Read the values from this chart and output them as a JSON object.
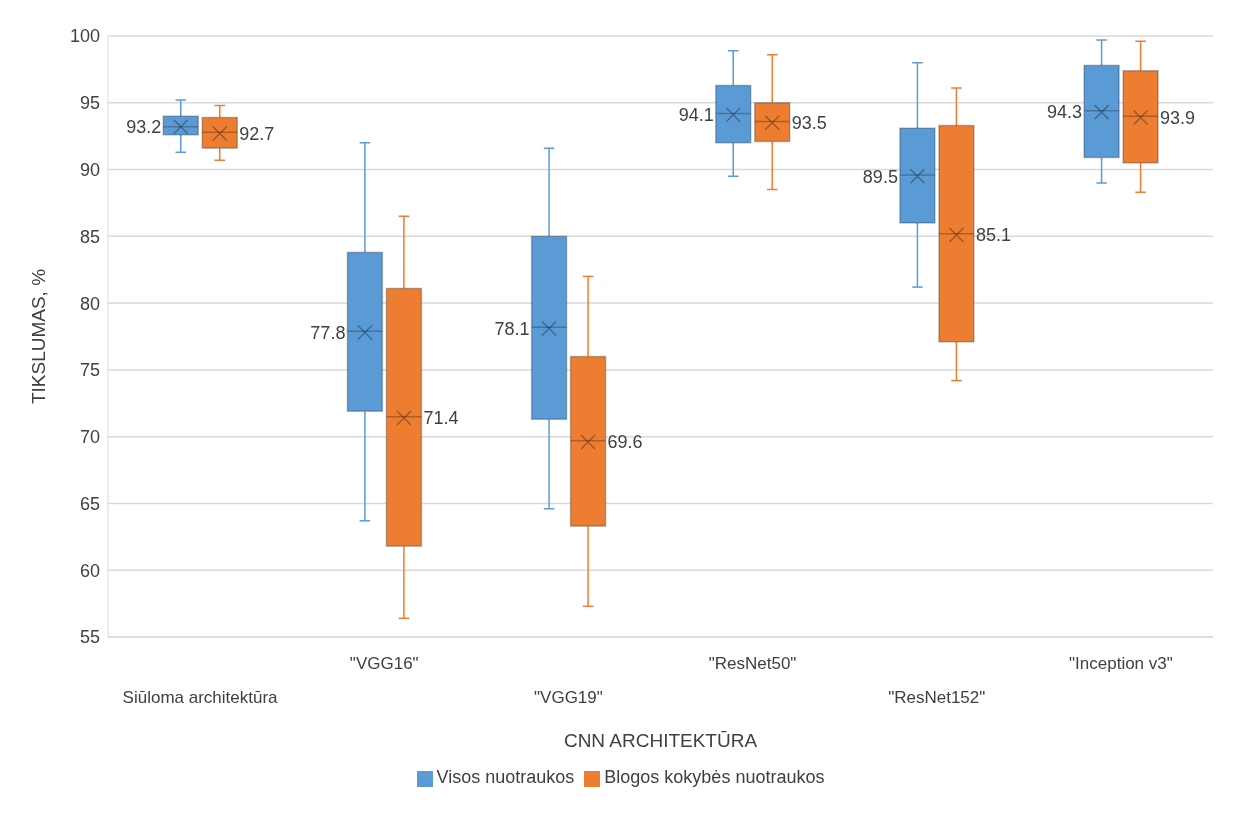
{
  "chart_data": {
    "type": "box",
    "xlabel": "CNN ARCHITEKTŪRA",
    "ylabel": "TIKSLUMAS, %",
    "categories": [
      "Siūloma architektūra",
      "\"VGG16\"",
      "\"VGG19\"",
      "\"ResNet50\"",
      "\"ResNet152\"",
      "\"Inception v3\""
    ],
    "ylim": [
      55,
      100
    ],
    "yticks": [
      55,
      60,
      65,
      70,
      75,
      80,
      85,
      90,
      95,
      100
    ],
    "grid": "y",
    "legend": "bottom",
    "series": [
      {
        "name": "Visos nuotraukos",
        "color": "#5b9bd5",
        "value_labels": [
          "93.2",
          "77.8",
          "78.1",
          "94.1",
          "89.5",
          "94.3"
        ],
        "boxes": [
          {
            "low": 91.3,
            "q1": 92.6,
            "median": 93.2,
            "q3": 94.0,
            "high": 95.2,
            "mean": 93.2
          },
          {
            "low": 63.7,
            "q1": 71.9,
            "median": 77.9,
            "q3": 83.8,
            "high": 92.0,
            "mean": 77.8
          },
          {
            "low": 64.6,
            "q1": 71.3,
            "median": 78.2,
            "q3": 85.0,
            "high": 91.6,
            "mean": 78.1
          },
          {
            "low": 89.5,
            "q1": 92.0,
            "median": 94.2,
            "q3": 96.3,
            "high": 98.9,
            "mean": 94.1
          },
          {
            "low": 81.2,
            "q1": 86.0,
            "median": 89.6,
            "q3": 93.1,
            "high": 98.0,
            "mean": 89.5
          },
          {
            "low": 89.0,
            "q1": 90.9,
            "median": 94.4,
            "q3": 97.8,
            "high": 99.7,
            "mean": 94.3
          }
        ]
      },
      {
        "name": "Blogos kokybės nuotraukos",
        "color": "#ed7d31",
        "value_labels": [
          "92.7",
          "71.4",
          "69.6",
          "93.5",
          "85.1",
          "93.9"
        ],
        "boxes": [
          {
            "low": 90.7,
            "q1": 91.6,
            "median": 92.8,
            "q3": 93.9,
            "high": 94.8,
            "mean": 92.7
          },
          {
            "low": 56.4,
            "q1": 61.8,
            "median": 71.5,
            "q3": 81.1,
            "high": 86.5,
            "mean": 71.4
          },
          {
            "low": 57.3,
            "q1": 63.3,
            "median": 69.7,
            "q3": 76.0,
            "high": 82.0,
            "mean": 69.6
          },
          {
            "low": 88.5,
            "q1": 92.1,
            "median": 93.6,
            "q3": 95.0,
            "high": 98.6,
            "mean": 93.5
          },
          {
            "low": 74.2,
            "q1": 77.1,
            "median": 85.2,
            "q3": 93.3,
            "high": 96.1,
            "mean": 85.1
          },
          {
            "low": 88.3,
            "q1": 90.5,
            "median": 94.0,
            "q3": 97.4,
            "high": 99.6,
            "mean": 93.9
          }
        ]
      }
    ]
  }
}
